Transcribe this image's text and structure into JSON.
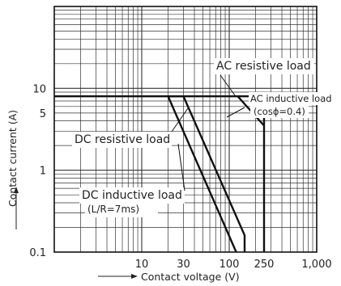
{
  "chart_data": {
    "type": "line",
    "x_scale": "log",
    "y_scale": "log",
    "xlim": [
      1,
      1000
    ],
    "ylim": [
      0.1,
      100
    ],
    "grid": true,
    "xlabel": "Contact voltage (V)",
    "ylabel": "Contact current (A)",
    "x_ticks": [
      {
        "value": 10,
        "label": "10"
      },
      {
        "value": 30,
        "label": "30"
      },
      {
        "value": 100,
        "label": "100"
      },
      {
        "value": 250,
        "label": "250"
      },
      {
        "value": 1000,
        "label": "1,000"
      }
    ],
    "y_ticks": [
      {
        "value": 0.1,
        "label": "0.1"
      },
      {
        "value": 1,
        "label": "1"
      },
      {
        "value": 5,
        "label": "5"
      },
      {
        "value": 10,
        "label": "10"
      }
    ],
    "series": [
      {
        "name": "DC resistive load",
        "points": [
          [
            20,
            8
          ],
          [
            30,
            8
          ],
          [
            150,
            0.16
          ],
          [
            150,
            0.1
          ]
        ]
      },
      {
        "name": "DC inductive load (L/R=7ms)",
        "points": [
          [
            20,
            8
          ],
          [
            120,
            0.1
          ]
        ]
      },
      {
        "name": "AC resistive load",
        "points": [
          [
            1,
            8
          ],
          [
            250,
            8
          ],
          [
            250,
            0.1
          ]
        ]
      },
      {
        "name": "AC inductive load (cosϕ=0.4)",
        "points": [
          [
            125,
            8
          ],
          [
            250,
            3.5
          ]
        ]
      }
    ],
    "annotations": [
      {
        "id": "ac_res",
        "text": "AC resistive load"
      },
      {
        "id": "ac_ind_1",
        "text": "AC inductive load"
      },
      {
        "id": "ac_ind_2",
        "text": "(cosϕ=0.4)"
      },
      {
        "id": "dc_res",
        "text": "DC resistive load"
      },
      {
        "id": "dc_ind_1",
        "text": "DC inductive load"
      },
      {
        "id": "dc_ind_2",
        "text": "(L/R=7ms)"
      }
    ]
  }
}
